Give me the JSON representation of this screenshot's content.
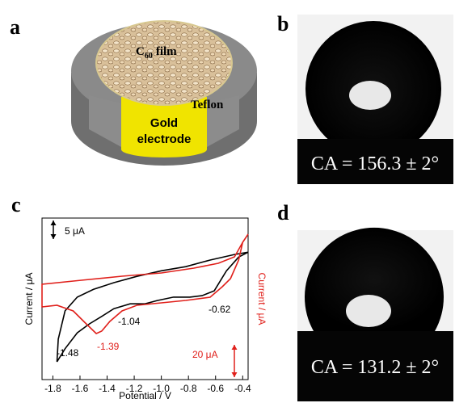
{
  "panels": {
    "a": {
      "label": "a",
      "film": {
        "base": "C",
        "sub": "60",
        "rest": "film"
      },
      "teflon": "Teflon",
      "electrode": [
        "Gold",
        "electrode"
      ]
    },
    "b": {
      "label": "b",
      "caption": "CA = 156.3 ± 2°"
    },
    "c": {
      "label": "c"
    },
    "d": {
      "label": "d",
      "caption": "CA = 131.2 ± 2°"
    }
  },
  "chart_data": {
    "type": "line",
    "x_label": "Potential / V",
    "y_label": "Current / μA",
    "y2_label": "Current / μA",
    "xlim": [
      -1.88,
      -0.36
    ],
    "xticks": [
      -1.8,
      -1.6,
      -1.4,
      -1.2,
      {
        "value": -1,
        "label": "-1.0"
      },
      -0.8,
      -0.6,
      -0.4
    ],
    "ylim": [
      0,
      43.5
    ],
    "y2lim": [
      0,
      100
    ],
    "series": [
      {
        "color": "#000000",
        "axis": "y",
        "x": [
          -0.36,
          -0.46,
          -0.64,
          -0.82,
          -1.0,
          -1.18,
          -1.35,
          -1.5,
          -1.62,
          -1.71,
          -1.76,
          -1.77,
          -1.71,
          -1.62,
          -1.53,
          -1.44,
          -1.35,
          -1.23,
          -1.12,
          -1.03,
          -0.91,
          -0.79,
          -0.7,
          -0.61,
          -0.52,
          -0.43,
          -0.36
        ],
        "values": [
          34.3,
          33.7,
          32.2,
          30.4,
          29.3,
          27.8,
          26.1,
          24.3,
          22.2,
          18.5,
          10.9,
          4.8,
          8.3,
          12.6,
          15.0,
          17.0,
          19.1,
          20.4,
          20.4,
          21.3,
          22.2,
          22.2,
          22.6,
          23.9,
          29.3,
          33.0,
          34.3
        ]
      },
      {
        "color": "#e0201b",
        "axis": "y2",
        "x": [
          -0.36,
          -0.4,
          -0.46,
          -0.58,
          -0.76,
          -1.0,
          -1.29,
          -1.59,
          -1.88,
          -1.88,
          -1.77,
          -1.65,
          -1.56,
          -1.48,
          -1.44,
          -1.38,
          -1.29,
          -1.18,
          -1.0,
          -0.82,
          -0.64,
          -0.55,
          -0.49,
          -0.43,
          -0.4,
          -0.36
        ],
        "values": [
          90,
          85,
          76,
          72,
          69,
          66,
          64,
          61.5,
          59,
          45,
          46,
          42.5,
          35,
          28.5,
          30,
          36,
          42.5,
          46,
          47.5,
          49,
          51,
          57.5,
          62.5,
          74,
          85,
          90
        ]
      }
    ],
    "annotations": [
      {
        "text": "-1.48",
        "color": "#000000"
      },
      {
        "text": "-1.39",
        "color": "#e0201b"
      },
      {
        "text": "-1.04",
        "color": "#000000"
      },
      {
        "text": "-0.62",
        "color": "#000000"
      }
    ],
    "scale_bars": [
      {
        "label": "5 μA",
        "value": 5,
        "axis": "y",
        "color": "#000000"
      },
      {
        "label": "20 μA",
        "value": 20,
        "axis": "y2",
        "color": "#e0201b"
      }
    ]
  }
}
